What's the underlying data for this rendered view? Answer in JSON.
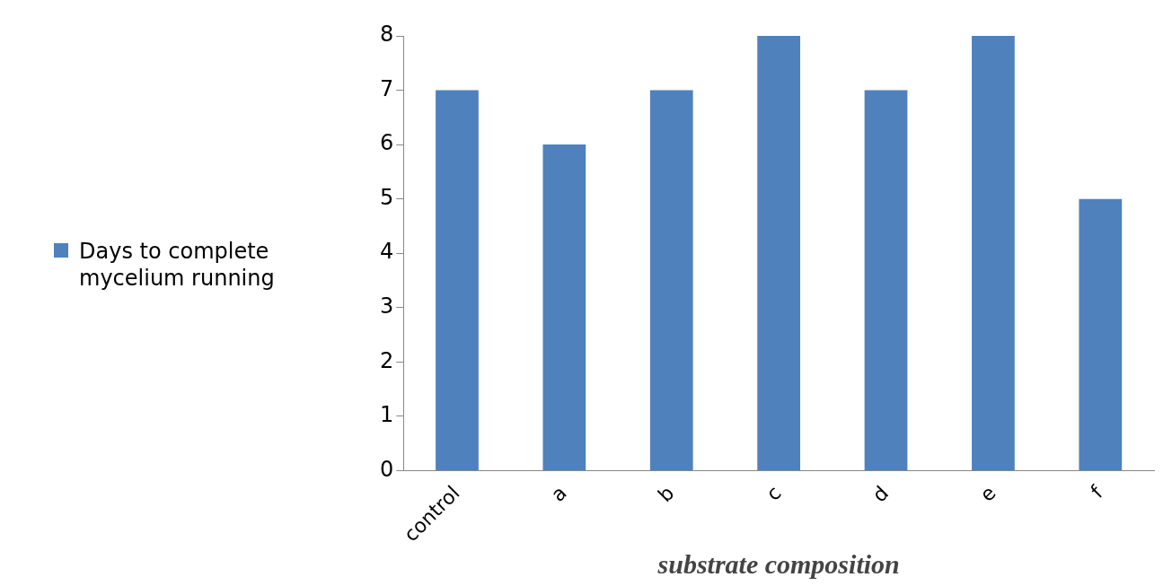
{
  "chart_data": {
    "type": "bar",
    "xlabel": "substrate composition",
    "categories": [
      "control",
      "a",
      "b",
      "c",
      "d",
      "e",
      "f"
    ],
    "series": [
      {
        "name": "Days to complete mycelium running",
        "color": "#4f81bd",
        "values": [
          7,
          6,
          7,
          8,
          7,
          8,
          5
        ]
      }
    ],
    "ylim": [
      0,
      8
    ],
    "yticks": [
      0,
      1,
      2,
      3,
      4,
      5,
      6,
      7,
      8
    ],
    "grid": false,
    "legend": "left"
  }
}
